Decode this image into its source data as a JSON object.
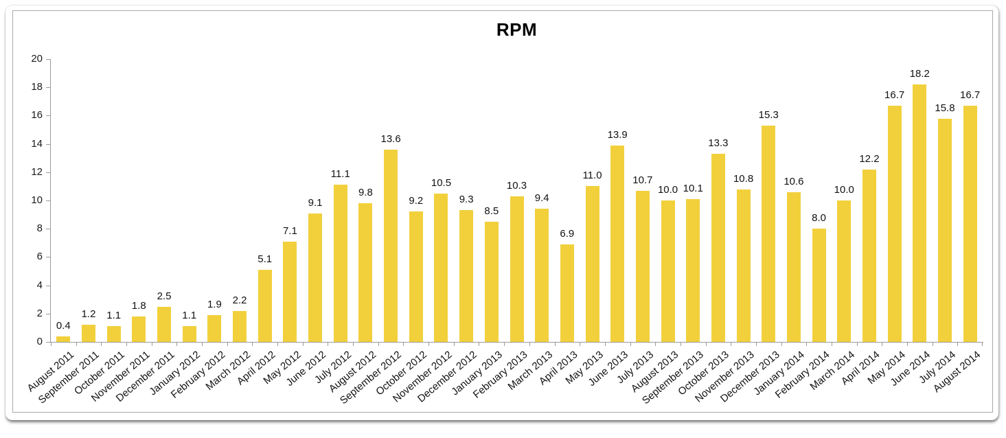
{
  "title": "RPM",
  "colors": {
    "bar": "#F2D03C",
    "axis": "#9a9a9a",
    "text": "#111111"
  },
  "chart_data": {
    "type": "bar",
    "title": "RPM",
    "categories": [
      "August 2011",
      "September 2011",
      "October 2011",
      "November 2011",
      "December 2011",
      "January 2012",
      "February 2012",
      "March 2012",
      "April 2012",
      "May 2012",
      "June 2012",
      "July 2012",
      "August 2012",
      "September 2012",
      "October 2012",
      "November 2012",
      "December 2012",
      "January 2013",
      "February 2013",
      "March 2013",
      "April 2013",
      "May 2013",
      "June 2013",
      "July 2013",
      "August 2013",
      "September 2013",
      "October 2013",
      "November 2013",
      "December 2013",
      "January 2014",
      "February 2014",
      "March 2014",
      "April 2014",
      "May 2014",
      "June 2014",
      "July 2014",
      "August 2014"
    ],
    "values": [
      0.4,
      1.2,
      1.1,
      1.8,
      2.5,
      1.1,
      1.9,
      2.2,
      5.1,
      7.1,
      9.1,
      11.1,
      9.8,
      13.6,
      9.2,
      10.5,
      9.3,
      8.5,
      10.3,
      9.4,
      6.9,
      11.0,
      13.9,
      10.7,
      10.0,
      10.1,
      13.3,
      10.8,
      15.3,
      10.6,
      8.0,
      10.0,
      12.2,
      16.7,
      18.2,
      15.8,
      16.7
    ],
    "value_label_decimals": 1,
    "xlabel": "",
    "ylabel": "",
    "ylim": [
      0,
      20
    ],
    "ytick_step": 2,
    "grid": false,
    "legend": false,
    "bar_color": "#F2D03C"
  }
}
